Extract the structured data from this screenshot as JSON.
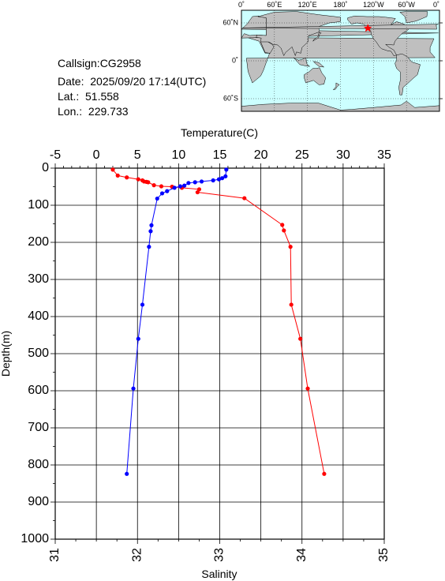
{
  "info": {
    "callsign": "Callsign:CG2958",
    "date": "Date:  2025/09/20 17:14(UTC)",
    "lat": "Lat.:  51.558",
    "lon": "Lon.:  229.733"
  },
  "map": {
    "lon_labels": [
      "0˚",
      "60˚E",
      "120˚E",
      "180˚",
      "120˚W",
      "60˚W",
      "0˚"
    ],
    "lat_labels": [
      "60˚N",
      "0˚",
      "60˚S"
    ],
    "ocean_color": "#ccffff",
    "land_color": "#bfbfbf",
    "marker": {
      "lon": 229.733,
      "lat": 51.558,
      "color": "#ff0000",
      "icon": "star-icon"
    }
  },
  "chart_data": {
    "type": "line",
    "title": "",
    "xlabel_top": "Temperature(C)",
    "xlabel_bottom": "Salinity",
    "ylabel": "Depth(m)",
    "temperature_axis": {
      "min": -5,
      "max": 35,
      "ticks": [
        -5,
        0,
        5,
        10,
        15,
        20,
        25,
        30,
        35
      ]
    },
    "salinity_axis": {
      "min": 31,
      "max": 35,
      "ticks": [
        31,
        32,
        33,
        34,
        35
      ]
    },
    "depth_axis": {
      "min": 0,
      "max": 1000,
      "inverted": true,
      "ticks": [
        0,
        100,
        200,
        300,
        400,
        500,
        600,
        700,
        800,
        900,
        1000
      ]
    },
    "grid": true,
    "series": [
      {
        "color": "#ff0000",
        "axis": "temperature",
        "points": [
          [
            2.0,
            4
          ],
          [
            2.6,
            20
          ],
          [
            3.7,
            25
          ],
          [
            5.1,
            30
          ],
          [
            5.6,
            33
          ],
          [
            5.8,
            36
          ],
          [
            6.1,
            37
          ],
          [
            6.3,
            38
          ],
          [
            7.0,
            46
          ],
          [
            7.9,
            49
          ],
          [
            9.2,
            50
          ],
          [
            10.4,
            53
          ],
          [
            12.5,
            57
          ],
          [
            12.3,
            65
          ],
          [
            18.0,
            81
          ],
          [
            22.6,
            153
          ],
          [
            22.8,
            168
          ],
          [
            23.6,
            212
          ],
          [
            23.7,
            368
          ],
          [
            24.8,
            460
          ],
          [
            25.7,
            594
          ],
          [
            27.7,
            824
          ]
        ]
      },
      {
        "color": "#0000ff",
        "axis": "salinity",
        "points": [
          [
            33.08,
            4
          ],
          [
            33.07,
            22
          ],
          [
            33.03,
            27
          ],
          [
            32.99,
            30
          ],
          [
            32.92,
            33
          ],
          [
            32.78,
            36
          ],
          [
            32.7,
            38
          ],
          [
            32.62,
            40
          ],
          [
            32.57,
            47
          ],
          [
            32.52,
            49
          ],
          [
            32.45,
            53
          ],
          [
            32.36,
            62
          ],
          [
            32.3,
            68
          ],
          [
            32.24,
            82
          ],
          [
            32.17,
            154
          ],
          [
            32.16,
            170
          ],
          [
            32.14,
            212
          ],
          [
            32.06,
            368
          ],
          [
            32.01,
            460
          ],
          [
            31.95,
            594
          ],
          [
            31.87,
            824
          ]
        ]
      }
    ]
  }
}
